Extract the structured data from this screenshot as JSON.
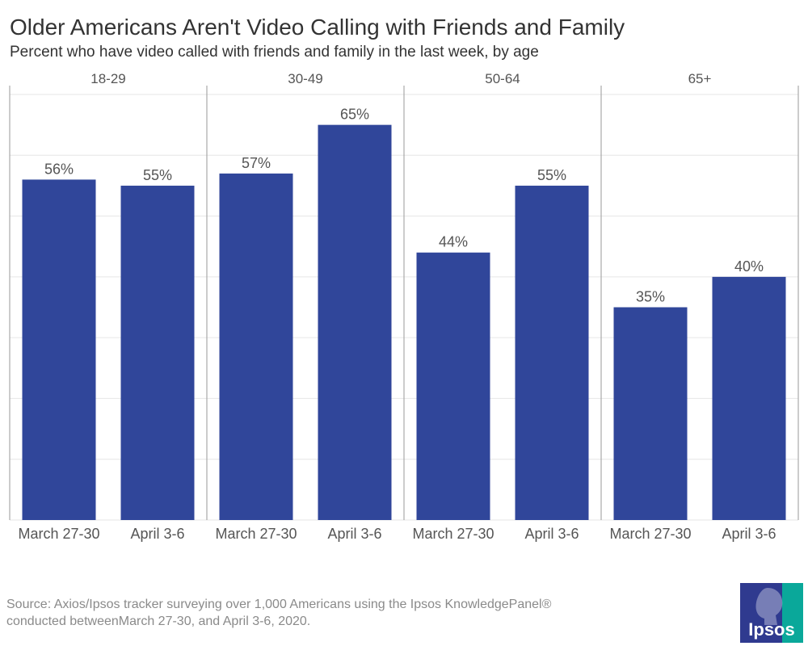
{
  "header": {
    "title": "Older Americans Aren't Video Calling with Friends and Family",
    "subtitle": "Percent who have video called with friends and family in the last week, by age"
  },
  "chart_data": {
    "type": "bar",
    "facets": [
      "18-29",
      "30-49",
      "50-64",
      "65+"
    ],
    "categories": [
      "March 27-30",
      "April 3-6"
    ],
    "values": [
      [
        56,
        55
      ],
      [
        57,
        65
      ],
      [
        44,
        55
      ],
      [
        35,
        40
      ]
    ],
    "value_labels": [
      [
        "56%",
        "55%"
      ],
      [
        "57%",
        "65%"
      ],
      [
        "44%",
        "55%"
      ],
      [
        "35%",
        "40%"
      ]
    ],
    "ylim": [
      0,
      70
    ],
    "grid": true,
    "bar_color": "#30469a",
    "grid_color": "#e6e6e6",
    "divider_color": "#9a9a9a"
  },
  "footer": {
    "source_line1": "Source: Axios/Ipsos tracker surveying over 1,000  Americans using the Ipsos KnowledgePanel®",
    "source_line2": "conducted betweenMarch 27-30, and  April 3-6, 2020."
  },
  "logo": {
    "text": "Ipsos",
    "color_blue": "#2f3a8f",
    "color_teal": "#0aa89a"
  }
}
